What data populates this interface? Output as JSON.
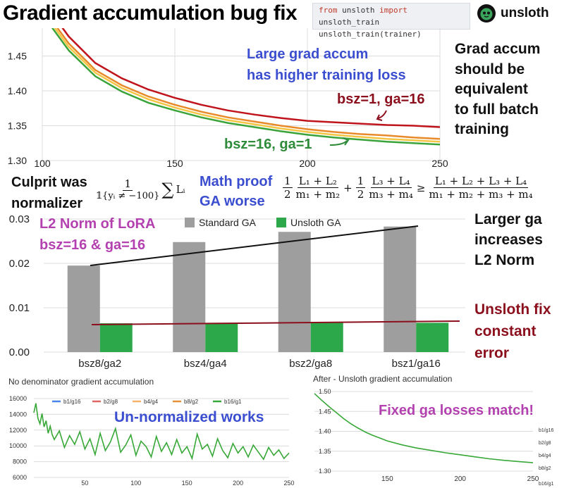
{
  "header": {
    "title": "Gradient accumulation bug fix",
    "code_line1_kw1": "from",
    "code_line1_mod": " unsloth ",
    "code_line1_kw2": "import",
    "code_line1_name": " unsloth_train",
    "code_line2": "unsloth_train(trainer)",
    "logo_text": "unsloth",
    "logo_icon": "sloth-face-icon"
  },
  "annotations": {
    "large_ga_line1": "Large grad accum",
    "large_ga_line2": "has higher training loss",
    "equiv_lines": [
      "Grad accum",
      "should be",
      "equivalent",
      "to full batch",
      "training"
    ],
    "bsz1_label": "bsz=1, ga=16",
    "bsz16_label": "bsz=16, ga=1",
    "culprit_line1": "Culprit was",
    "culprit_line2": "normalizer",
    "math_proof_line1": "Math proof",
    "math_proof_line2": "GA worse",
    "l2_line1": "L2 Norm of LoRA",
    "l2_line2": "bsz=16 & ga=16",
    "larger_ga_lines": [
      "Larger ga",
      "increases",
      "L2 Norm"
    ],
    "fix_lines": [
      "Unsloth fix",
      "constant",
      "error"
    ],
    "unnormalized": "Un-normalized works",
    "fixed_match": "Fixed ga losses match!"
  },
  "math": {
    "norm_num": "1",
    "norm_den": "𝟙{yᵢ ≠ −100}",
    "sum": "∑",
    "sum_term": "Lᵢ",
    "half": "1",
    "two": "2",
    "l12": "L₁ + L₂",
    "m12": "m₁ + m₂",
    "l34": "L₃ + L₄",
    "m34": "m₃ + m₄",
    "plus": "+",
    "geq": "≥",
    "l1234": "L₁ + L₂ + L₃ + L₄",
    "m1234": "m₁ + m₂ + m₃ + m₄"
  },
  "chart_data": [
    {
      "type": "line",
      "xlim": [
        100,
        250
      ],
      "ylim": [
        1.3,
        1.49
      ],
      "x_ticks": [
        "100",
        "150",
        "200",
        "250"
      ],
      "y_ticks": [
        "1.30",
        "1.35",
        "1.40",
        "1.45"
      ],
      "grid": true,
      "colors": [
        "#c0141c",
        "#e88a2a",
        "#f4c542",
        "#3aa33a"
      ],
      "series": [
        {
          "x": [
            100,
            110,
            120,
            130,
            140,
            150,
            160,
            170,
            180,
            190,
            200,
            210,
            220,
            230,
            240,
            250
          ],
          "values": [
            1.53,
            1.478,
            1.44,
            1.418,
            1.402,
            1.39,
            1.38,
            1.372,
            1.366,
            1.361,
            1.357,
            1.355,
            1.353,
            1.351,
            1.35,
            1.348
          ]
        },
        {
          "x": [
            100,
            110,
            120,
            130,
            140,
            150,
            160,
            170,
            180,
            190,
            200,
            210,
            220,
            230,
            240,
            250
          ],
          "values": [
            1.52,
            1.468,
            1.43,
            1.408,
            1.392,
            1.38,
            1.37,
            1.362,
            1.356,
            1.35,
            1.345,
            1.341,
            1.338,
            1.336,
            1.333,
            1.331
          ]
        },
        {
          "x": [
            100,
            110,
            120,
            130,
            140,
            150,
            160,
            170,
            180,
            190,
            200,
            210,
            220,
            230,
            240,
            250
          ],
          "values": [
            1.515,
            1.463,
            1.426,
            1.404,
            1.388,
            1.376,
            1.366,
            1.358,
            1.352,
            1.346,
            1.341,
            1.337,
            1.334,
            1.331,
            1.329,
            1.327
          ]
        },
        {
          "x": [
            100,
            110,
            120,
            130,
            140,
            150,
            160,
            170,
            180,
            190,
            200,
            210,
            220,
            230,
            240,
            250
          ],
          "values": [
            1.51,
            1.458,
            1.421,
            1.399,
            1.383,
            1.372,
            1.362,
            1.354,
            1.348,
            1.342,
            1.337,
            1.333,
            1.33,
            1.327,
            1.325,
            1.323
          ]
        }
      ]
    },
    {
      "type": "bar",
      "categories": [
        "bsz8/ga2",
        "bsz4/ga4",
        "bsz2/ga8",
        "bsz1/ga16"
      ],
      "series": [
        {
          "name": "Standard GA",
          "values": [
            0.0195,
            0.0248,
            0.0271,
            0.0283
          ],
          "color": "#9e9e9e"
        },
        {
          "name": "Unsloth GA",
          "values": [
            0.0065,
            0.0066,
            0.0066,
            0.0066
          ],
          "color": "#2ca84a"
        }
      ],
      "ylim": [
        0,
        0.03
      ],
      "y_ticks": [
        "0.00",
        "0.01",
        "0.02",
        "0.03"
      ],
      "grid": true,
      "legend_position": "top"
    },
    {
      "type": "line",
      "title": "No denominator gradient accumulation",
      "xlim": [
        0,
        250
      ],
      "ylim": [
        6000,
        16000
      ],
      "x_ticks": [
        "50",
        "100",
        "150",
        "200",
        "250"
      ],
      "y_ticks": [
        "6000",
        "8000",
        "10000",
        "12000",
        "14000",
        "16000"
      ],
      "legend": [
        "b1/g16",
        "b2/g8",
        "b4/g4",
        "b8/g2",
        "b16/g1"
      ],
      "legend_colors": [
        "#4a86e8",
        "#e06666",
        "#f6b26b",
        "#e69138",
        "#38a838"
      ],
      "series": [
        {
          "name": "b16/g1",
          "x": [
            0,
            2,
            4,
            6,
            8,
            10,
            12,
            14,
            16,
            18,
            20,
            25,
            30,
            35,
            40,
            45,
            50,
            55,
            60,
            65,
            70,
            75,
            80,
            85,
            90,
            95,
            100,
            105,
            110,
            115,
            120,
            125,
            130,
            135,
            140,
            145,
            150,
            155,
            160,
            165,
            170,
            175,
            180,
            185,
            190,
            195,
            200,
            205,
            210,
            215,
            220,
            225,
            230,
            235,
            240,
            245,
            250
          ],
          "values": [
            14200,
            15400,
            13500,
            12800,
            14100,
            12400,
            13200,
            11600,
            12500,
            11400,
            10800,
            11900,
            9800,
            11300,
            10200,
            11800,
            9600,
            10900,
            8900,
            11600,
            9400,
            10500,
            12200,
            9200,
            10100,
            11400,
            8800,
            10600,
            9900,
            8600,
            11200,
            9300,
            10400,
            8900,
            10800,
            9100,
            9900,
            8400,
            11500,
            9600,
            10200,
            8700,
            10900,
            9400,
            8500,
            10300,
            9100,
            9900,
            8600,
            10100,
            9200,
            8300,
            9800,
            8800,
            9500,
            8400,
            9100
          ]
        }
      ]
    },
    {
      "type": "line",
      "title": "After - Unsloth gradient accumulation",
      "xlim": [
        100,
        250
      ],
      "ylim": [
        1.3,
        1.5
      ],
      "x_ticks": [
        "150",
        "200",
        "250"
      ],
      "y_ticks": [
        "1.30",
        "1.35",
        "1.40",
        "1.45",
        "1.50"
      ],
      "legend": [
        "b1/g16",
        "b2/g8",
        "b4/g4",
        "b8/g2",
        "b16/g1"
      ],
      "series": [
        {
          "name": "b16/g1",
          "x": [
            100,
            105,
            110,
            115,
            120,
            125,
            130,
            135,
            140,
            145,
            150,
            160,
            170,
            180,
            190,
            200,
            210,
            220,
            230,
            240,
            250
          ],
          "values": [
            1.495,
            1.478,
            1.462,
            1.447,
            1.432,
            1.419,
            1.408,
            1.398,
            1.39,
            1.383,
            1.376,
            1.366,
            1.358,
            1.352,
            1.346,
            1.341,
            1.336,
            1.331,
            1.327,
            1.324,
            1.321
          ]
        }
      ]
    }
  ]
}
